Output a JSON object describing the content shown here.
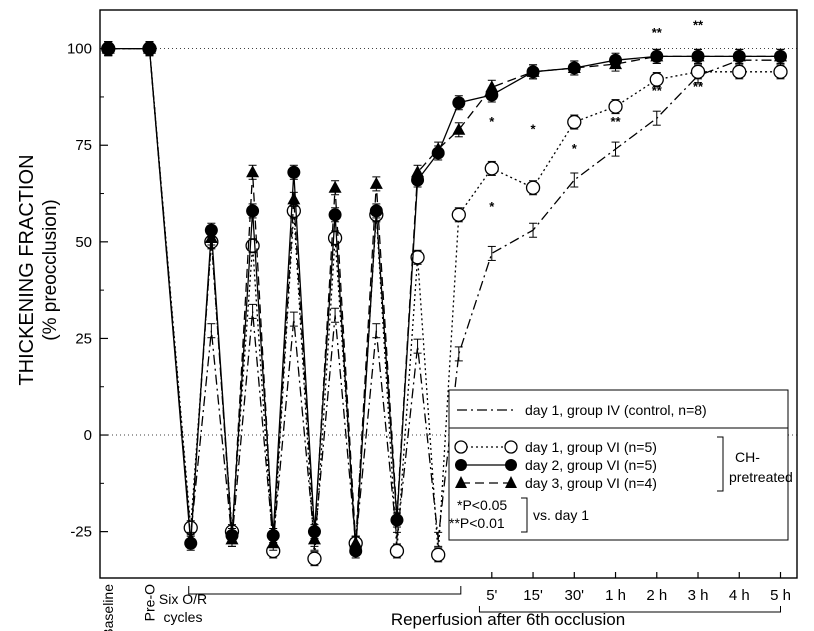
{
  "chart_data": {
    "type": "line",
    "ylabel": "THICKENING FRACTION",
    "ylabel_sub": "(% preocclusion)",
    "xlabel_reperfusion": "Reperfusion after 6th occlusion",
    "xlabel_cycles": [
      "Six O/R",
      "cycles"
    ],
    "ylim": [
      -37,
      110
    ],
    "yticks": [
      100,
      75,
      50,
      25,
      0,
      -25
    ],
    "ytick_labels": [
      "100",
      "75",
      "50",
      "25",
      "0",
      "-25"
    ],
    "xtick_labels": [
      "Baseline",
      "Pre-O",
      "5'",
      "15'",
      "30'",
      "1 h",
      "2 h",
      "3 h",
      "4 h",
      "5 h"
    ],
    "x_positions": [
      0,
      1,
      2,
      2.5,
      3,
      3.5,
      4,
      4.5,
      5,
      5.5,
      6,
      6.5,
      7,
      7.5,
      8,
      8.5,
      9.3,
      10.3,
      11.3,
      12.3,
      13.3,
      14.3,
      15.3
    ],
    "x_notes": "positions 0=Baseline, 1=Pre-O, 2..8.5 = six occlusion/reperfusion cycles (O,R pairs), 9.3=5', 10.3=15', 11.3=30', 12.3=1 h, 13.3=2 h, 14.3=3 h, 15.3=4 h",
    "series": [
      {
        "name": "day 1, group IV (control, n=8)",
        "marker": "none",
        "style": "dashdot",
        "x": [
          0,
          1,
          2,
          2.5,
          3,
          3.5,
          4,
          4.5,
          5,
          5.5,
          6,
          6.5,
          7,
          7.5,
          8,
          8.5,
          9.3,
          10.3,
          11.3,
          12.3,
          13.3,
          14.3,
          15.3,
          16.3
        ],
        "values": [
          100,
          100,
          -26,
          27,
          -27,
          32,
          -28,
          30,
          -28,
          31,
          -28,
          27,
          -27,
          23,
          -27,
          21,
          47,
          53,
          66,
          74,
          82,
          93,
          97,
          97
        ]
      },
      {
        "name": "day 1, group VI (n=5)",
        "marker": "circle-open",
        "style": "dotted",
        "x": [
          0,
          1,
          2,
          2.5,
          3,
          3.5,
          4,
          4.5,
          5,
          5.5,
          6,
          6.5,
          7,
          7.5,
          8,
          8.5,
          9.3,
          10.3,
          11.3,
          12.3,
          13.3,
          14.3,
          15.3,
          16.3
        ],
        "values": [
          100,
          100,
          -24,
          50,
          -25,
          49,
          -30,
          58,
          -32,
          51,
          -28,
          57,
          -30,
          46,
          -31,
          57,
          69,
          64,
          81,
          85,
          92,
          94,
          94,
          94
        ]
      },
      {
        "name": "day 2, group VI (n=5)",
        "marker": "circle-filled",
        "style": "solid",
        "x": [
          0,
          1,
          2,
          2.5,
          3,
          3.5,
          4,
          4.5,
          5,
          5.5,
          6,
          6.5,
          7,
          7.5,
          8,
          8.5,
          9.3,
          10.3,
          11.3,
          12.3,
          13.3,
          14.3,
          15.3,
          16.3
        ],
        "values": [
          100,
          100,
          -28,
          53,
          -26,
          58,
          -26,
          68,
          -25,
          57,
          -30,
          58,
          -22,
          66,
          73,
          86,
          88,
          94,
          95,
          97,
          98,
          98,
          98,
          98
        ]
      },
      {
        "name": "day 3, group VI (n=4)",
        "marker": "triangle-filled",
        "style": "dashed",
        "x": [
          0,
          1,
          2,
          2.5,
          3,
          3.5,
          4,
          4.5,
          5,
          5.5,
          6,
          6.5,
          7,
          7.5,
          8,
          8.5,
          9.3,
          10.3,
          11.3,
          12.3,
          13.3,
          14.3,
          15.3,
          16.3
        ],
        "values": [
          100,
          100,
          -27,
          51,
          -27,
          68,
          -28,
          61,
          -27,
          64,
          -28,
          65,
          -21,
          68,
          74,
          79,
          90,
          94,
          95,
          96,
          98,
          98,
          98,
          98
        ]
      }
    ],
    "legend": {
      "items": [
        "day 1, group IV (control, n=8)",
        "day 1, group VI (n=5)",
        "day 2, group VI (n=5)",
        "day 3, group VI (n=4)"
      ],
      "bracket_label": [
        "CH-",
        "pretreated"
      ],
      "sig1": "*P<0.05",
      "sig2": "**P<0.01",
      "sig_note": "vs. day 1"
    },
    "sig_marks": [
      {
        "label": "*",
        "x": 9.3,
        "y": 80
      },
      {
        "label": "*",
        "x": 9.3,
        "y": 58
      },
      {
        "label": "*",
        "x": 10.3,
        "y": 78
      },
      {
        "label": "*",
        "x": 11.3,
        "y": 73
      },
      {
        "label": "**",
        "x": 12.3,
        "y": 94
      },
      {
        "label": "**",
        "x": 12.3,
        "y": 80
      },
      {
        "label": "**",
        "x": 13.3,
        "y": 103
      },
      {
        "label": "**",
        "x": 13.3,
        "y": 88
      },
      {
        "label": "**",
        "x": 14.3,
        "y": 105
      },
      {
        "label": "**",
        "x": 14.3,
        "y": 89
      }
    ]
  }
}
